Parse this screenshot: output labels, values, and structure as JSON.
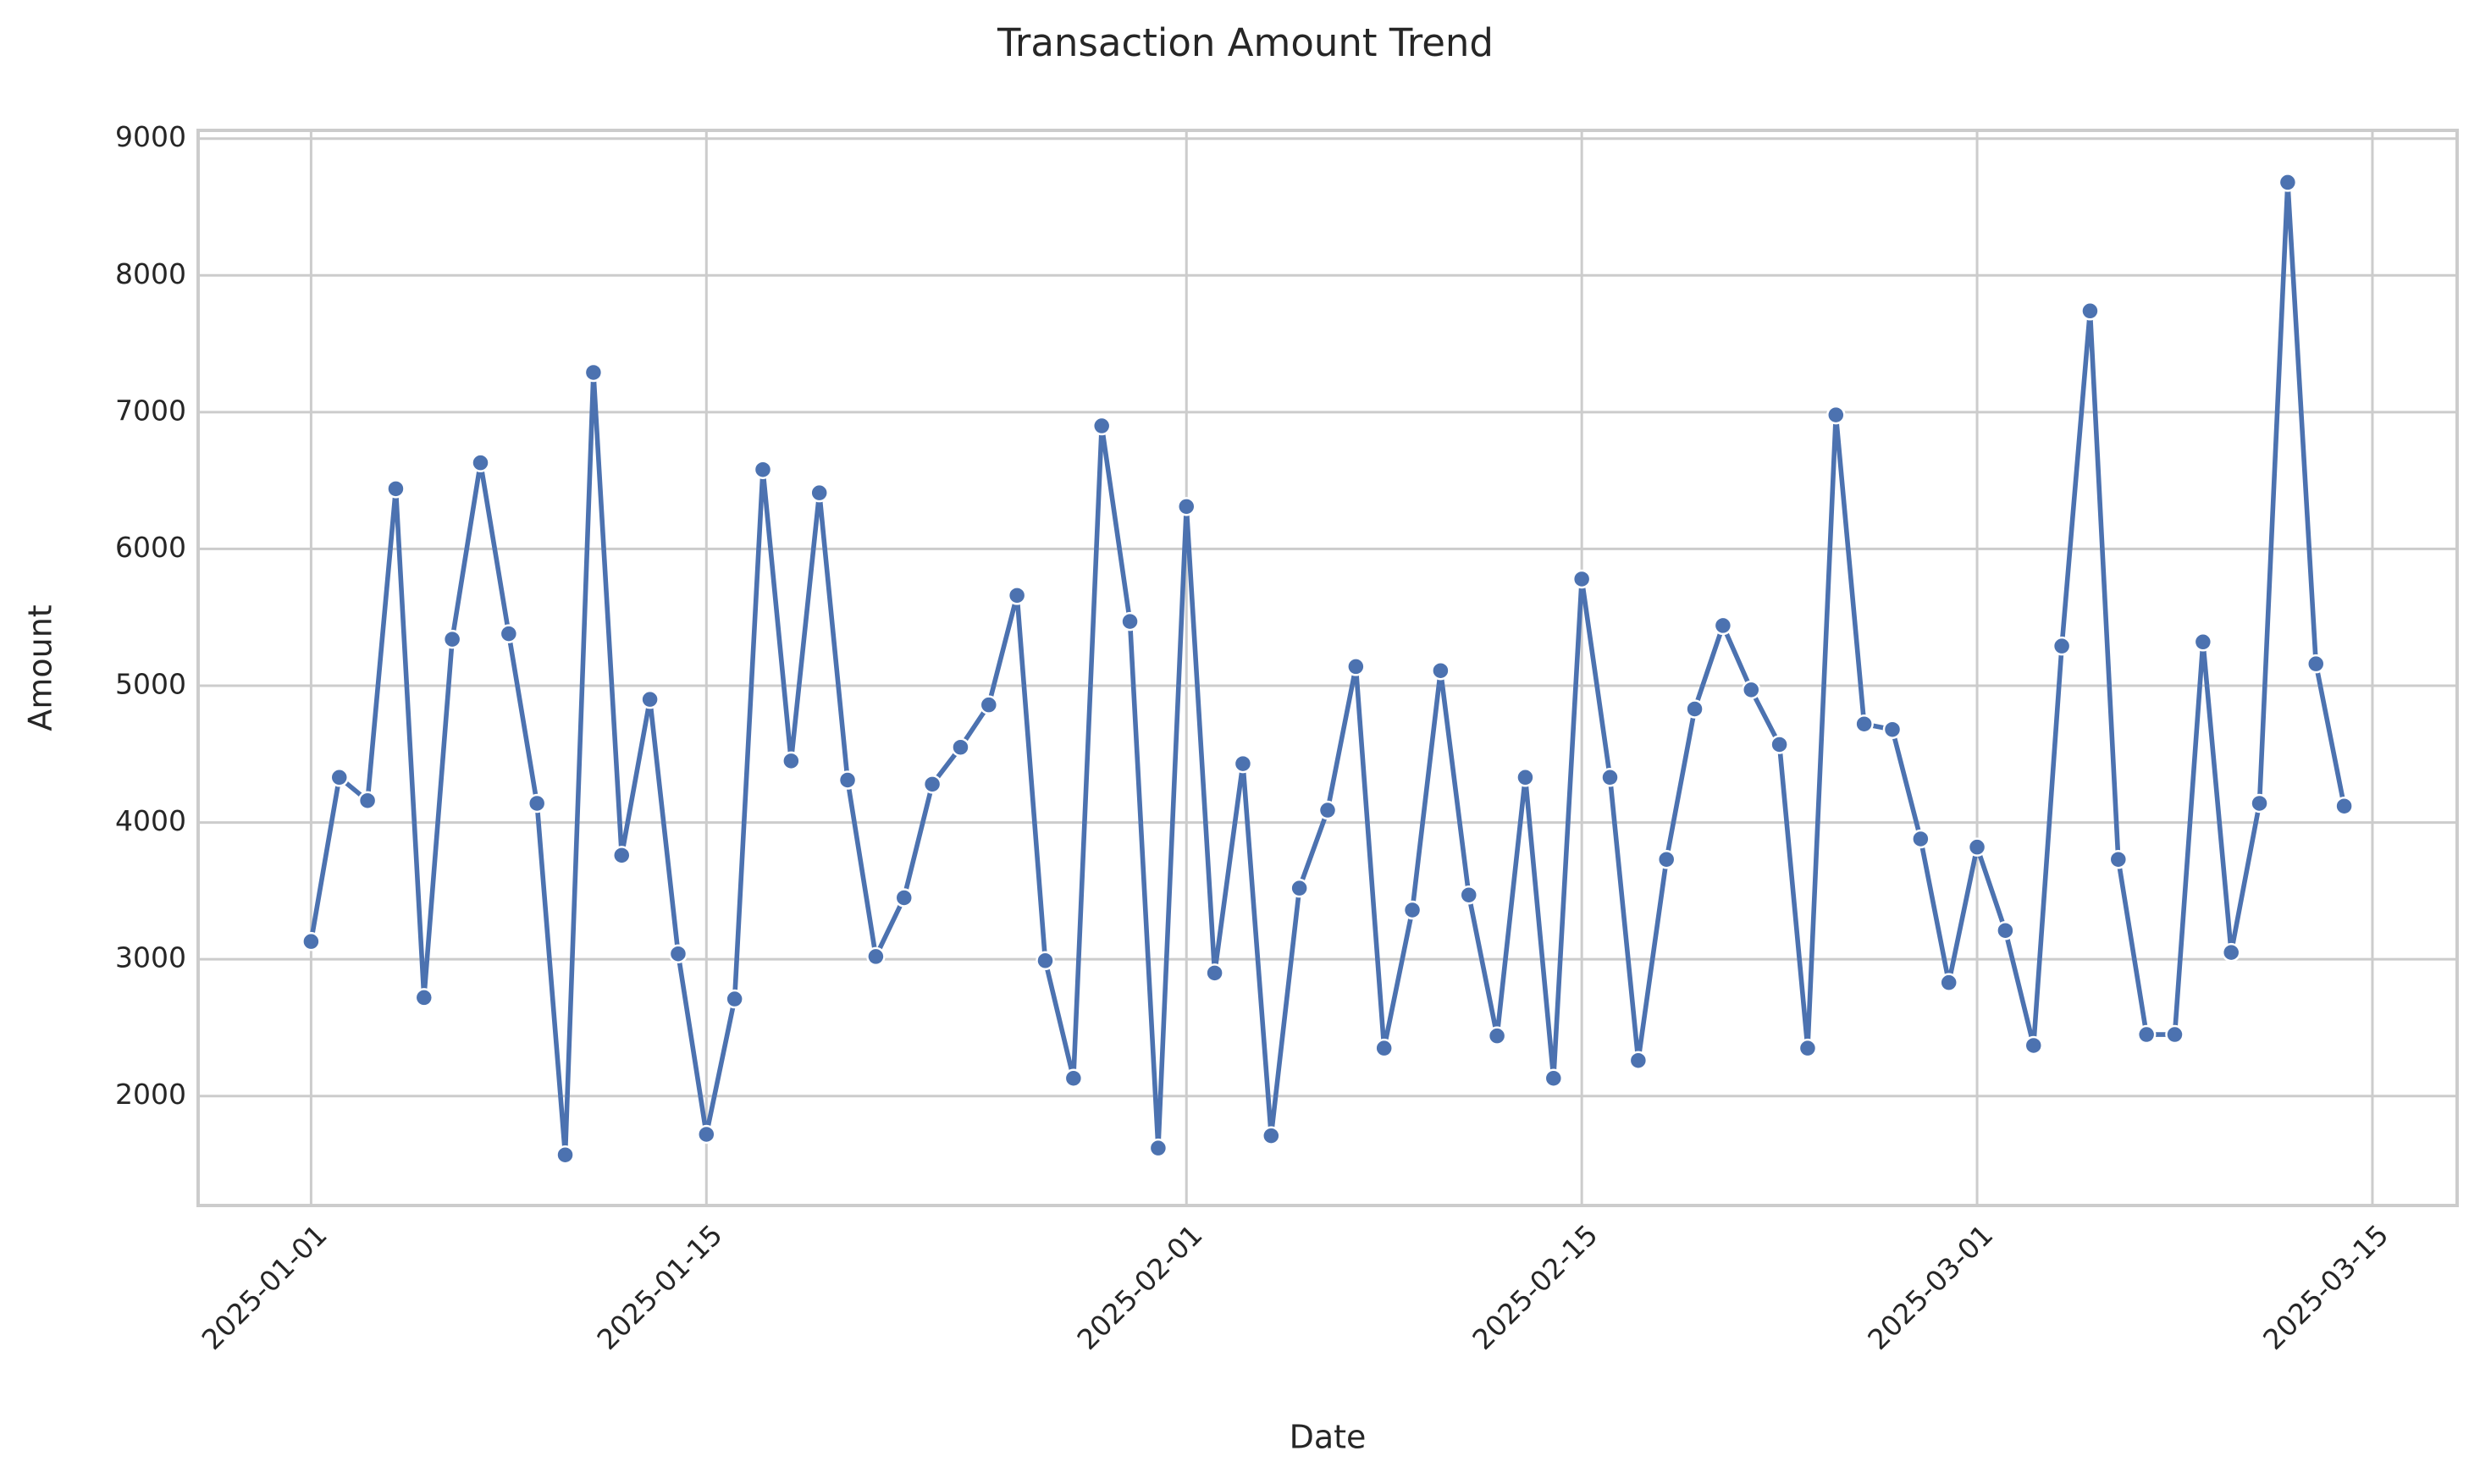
{
  "chart_data": {
    "type": "line",
    "title": "Transaction Amount Trend",
    "x_label": "Date",
    "y_label": "Amount",
    "x": [
      "2025-01-01",
      "2025-01-02",
      "2025-01-03",
      "2025-01-04",
      "2025-01-05",
      "2025-01-06",
      "2025-01-07",
      "2025-01-08",
      "2025-01-09",
      "2025-01-10",
      "2025-01-11",
      "2025-01-12",
      "2025-01-13",
      "2025-01-14",
      "2025-01-15",
      "2025-01-16",
      "2025-01-17",
      "2025-01-18",
      "2025-01-19",
      "2025-01-20",
      "2025-01-21",
      "2025-01-22",
      "2025-01-23",
      "2025-01-24",
      "2025-01-25",
      "2025-01-26",
      "2025-01-27",
      "2025-01-28",
      "2025-01-29",
      "2025-01-30",
      "2025-01-31",
      "2025-02-01",
      "2025-02-02",
      "2025-02-03",
      "2025-02-04",
      "2025-02-05",
      "2025-02-06",
      "2025-02-07",
      "2025-02-08",
      "2025-02-09",
      "2025-02-10",
      "2025-02-11",
      "2025-02-12",
      "2025-02-13",
      "2025-02-14",
      "2025-02-15",
      "2025-02-16",
      "2025-02-17",
      "2025-02-18",
      "2025-02-19",
      "2025-02-20",
      "2025-02-21",
      "2025-02-22",
      "2025-02-23",
      "2025-02-24",
      "2025-02-25",
      "2025-02-26",
      "2025-02-27",
      "2025-02-28",
      "2025-03-01",
      "2025-03-02",
      "2025-03-03",
      "2025-03-04",
      "2025-03-05",
      "2025-03-06",
      "2025-03-07",
      "2025-03-08",
      "2025-03-09",
      "2025-03-10",
      "2025-03-11",
      "2025-03-12",
      "2025-03-13",
      "2025-03-14"
    ],
    "series": [
      {
        "color": "#4c72b0",
        "values": [
          3130,
          4330,
          4160,
          6440,
          2720,
          5340,
          6630,
          5380,
          4140,
          1570,
          7290,
          3760,
          4900,
          3040,
          1720,
          2710,
          6580,
          4450,
          6410,
          4310,
          3020,
          3450,
          4280,
          4550,
          4860,
          5660,
          2990,
          2130,
          6900,
          5470,
          1620,
          6310,
          2900,
          4430,
          1710,
          3520,
          4090,
          5140,
          2350,
          3360,
          5110,
          3470,
          2440,
          4330,
          2130,
          5780,
          4330,
          2260,
          3730,
          4830,
          5440,
          4970,
          4570,
          2350,
          6980,
          4720,
          4680,
          3880,
          2830,
          3820,
          3210,
          2370,
          5290,
          7740,
          3730,
          2450,
          2450,
          5320,
          3050,
          4140,
          8680,
          5160,
          4120
        ]
      }
    ],
    "xlim": [
      "2024-12-28",
      "2025-03-18"
    ],
    "xticks": [
      "2025-01-01",
      "2025-01-15",
      "2025-02-01",
      "2025-02-15",
      "2025-03-01",
      "2025-03-15"
    ],
    "ylim": [
      1200,
      9060
    ],
    "yticks": [
      2000,
      3000,
      4000,
      5000,
      6000,
      7000,
      8000,
      9000
    ],
    "grid": true
  }
}
